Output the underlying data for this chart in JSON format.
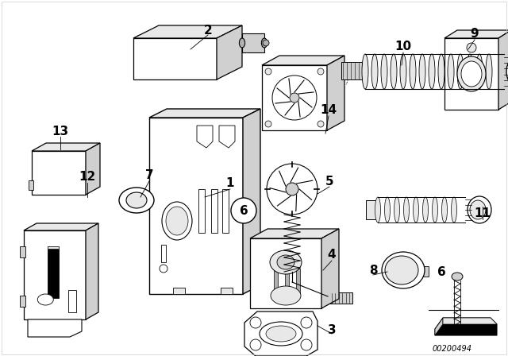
{
  "background_color": "#ffffff",
  "image_id": "00200494",
  "black": "#000000",
  "gray_light": "#e8e8e8",
  "gray_mid": "#d0d0d0",
  "gray_dark": "#b0b0b0",
  "label_fontsize": 11,
  "label_fontweight": "bold"
}
